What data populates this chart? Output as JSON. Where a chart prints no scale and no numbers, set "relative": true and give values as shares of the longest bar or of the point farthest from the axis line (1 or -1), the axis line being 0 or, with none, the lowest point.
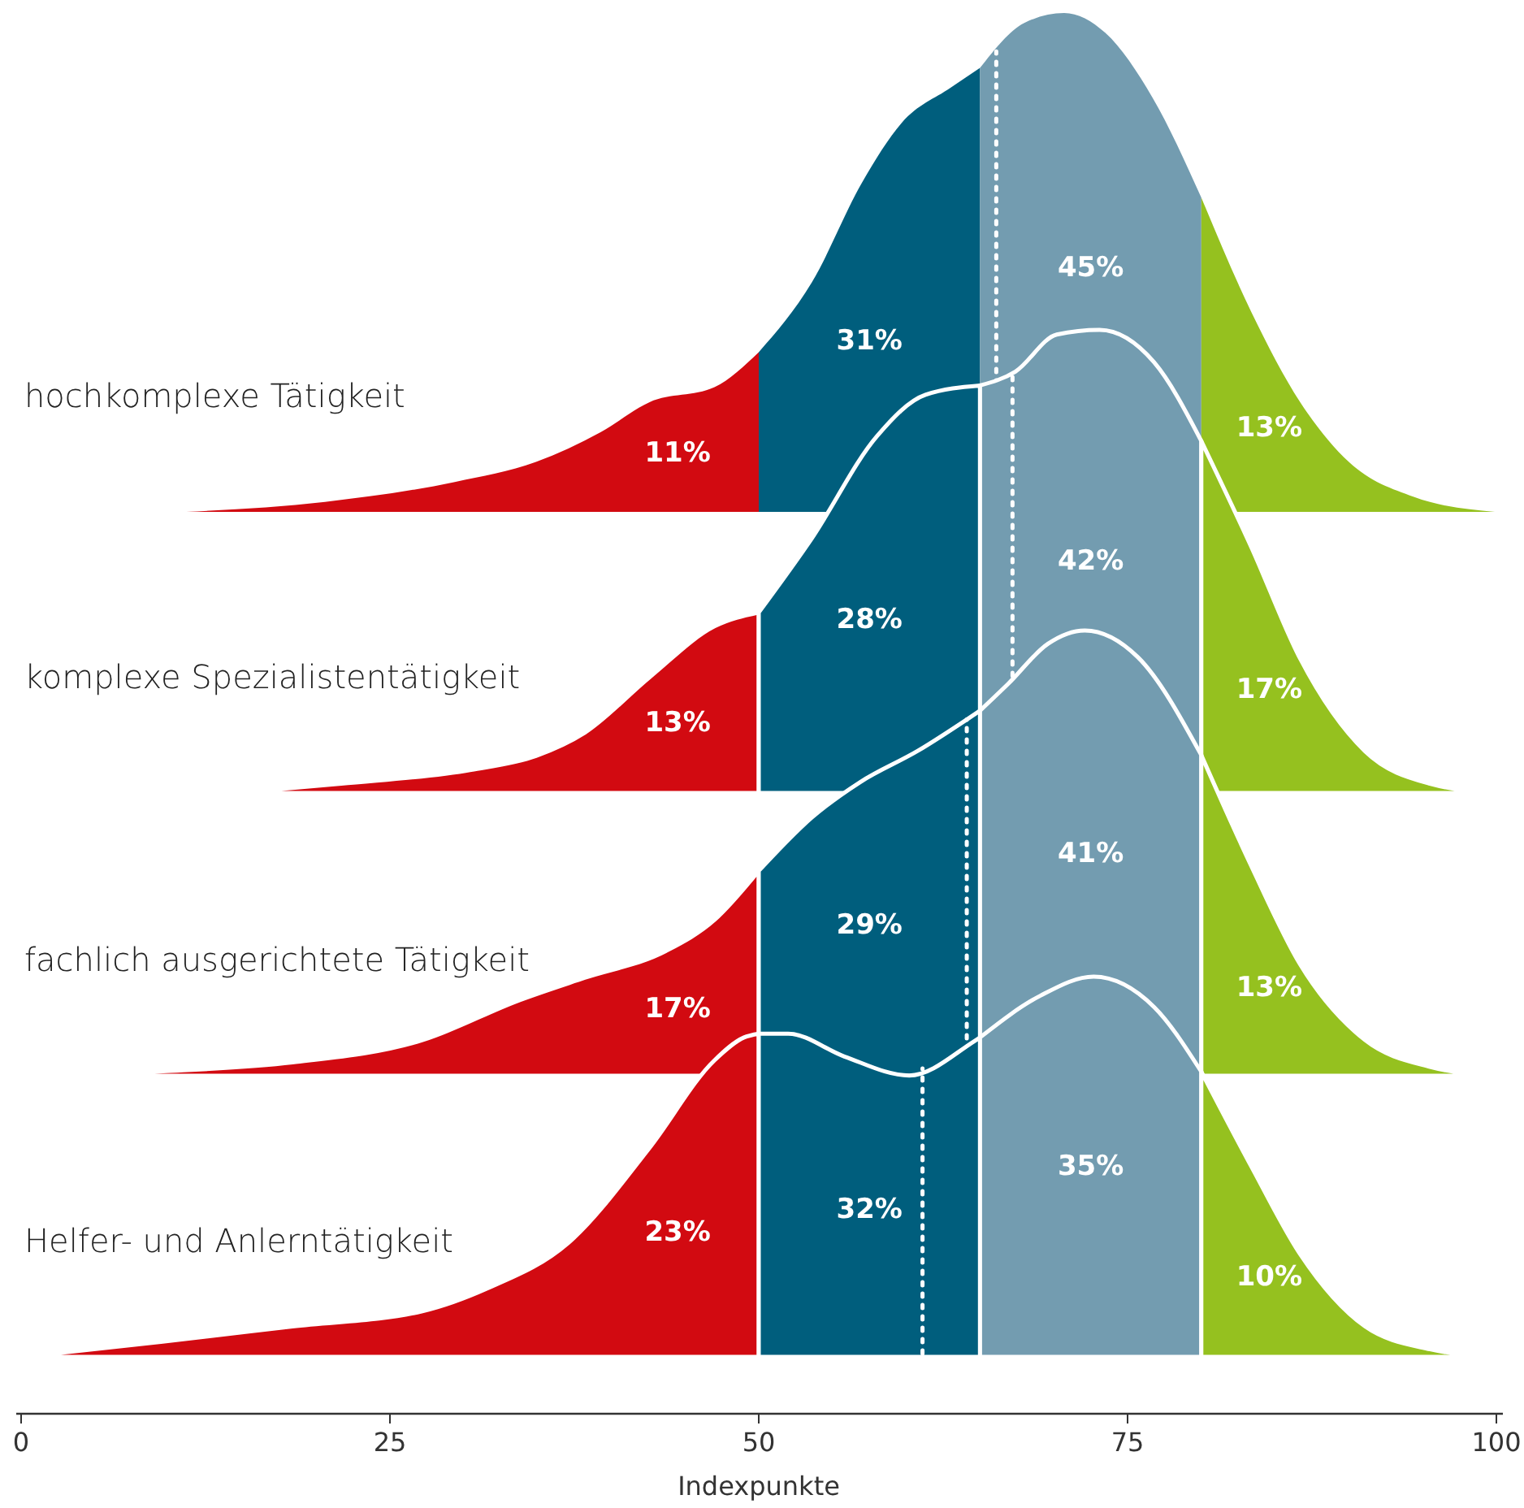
{
  "chart_data": [
    {
      "type": "area",
      "relative": true,
      "ylabel": "hochkomplexe Tätigkeit",
      "xlim": [
        0,
        100
      ],
      "tick_labels": false,
      "series": [
        {
          "color": "#d20a11",
          "x": [
            11.2,
            20.6,
            29.4,
            34.9,
            39.3,
            42.6,
            47.0,
            50
          ],
          "values": [
            0,
            0.02,
            0.06,
            0.1,
            0.16,
            0.22,
            0.25,
            0.32
          ]
        },
        {
          "color": "#005e7d",
          "x": [
            50,
            53.6,
            57.0,
            59.7,
            63.0,
            65
          ],
          "values": [
            0.32,
            0.46,
            0.66,
            0.78,
            0.85,
            0.89
          ]
        },
        {
          "color": "#739cb0",
          "x": [
            65,
            68.0,
            70.7,
            73.5,
            76.7,
            80
          ],
          "values": [
            0.89,
            0.98,
            1.0,
            0.96,
            0.83,
            0.63
          ]
        },
        {
          "color": "#95c11f",
          "x": [
            80,
            83.4,
            86.7,
            90.0,
            94.4,
            99.9
          ],
          "values": [
            0.63,
            0.4,
            0.22,
            0.1,
            0.03,
            0
          ]
        }
      ],
      "annotations": [
        "11%",
        "31%",
        "45%",
        "13%"
      ],
      "ref_lines": [
        {
          "axis": "x",
          "value": 66.1,
          "color": "#ffffff",
          "line_style": "dotted"
        }
      ]
    },
    {
      "type": "area",
      "relative": true,
      "ylabel": "komplexe Spezialistentätigkeit",
      "xlim": [
        0,
        100
      ],
      "tick_labels": false,
      "series": [
        {
          "color": "#d20a11",
          "x": [
            14.5,
            21.7,
            30.5,
            34.9,
            38.2,
            42.6,
            47.0,
            50
          ],
          "values": [
            0,
            0.02,
            0.05,
            0.08,
            0.13,
            0.25,
            0.36,
            0.39
          ]
        },
        {
          "color": "#005e7d",
          "x": [
            50,
            53.6,
            58.0,
            61.3,
            65
          ],
          "values": [
            0.39,
            0.55,
            0.77,
            0.86,
            0.88
          ]
        },
        {
          "color": "#739cb0",
          "x": [
            65,
            67.4,
            70.2,
            73.1,
            76.8,
            80
          ],
          "values": [
            0.88,
            0.91,
            0.99,
            1.0,
            0.93,
            0.76
          ]
        },
        {
          "color": "#95c11f",
          "x": [
            80,
            83.4,
            86.7,
            91.1,
            95.5,
            100
          ],
          "values": [
            0.76,
            0.53,
            0.29,
            0.09,
            0.02,
            0
          ]
        }
      ],
      "annotations": [
        "13%",
        "28%",
        "42%",
        "17%"
      ],
      "ref_lines": [
        {
          "axis": "x",
          "value": 67.2,
          "color": "#ffffff",
          "line_style": "dotted"
        }
      ]
    },
    {
      "type": "area",
      "relative": true,
      "ylabel": "fachlich ausgerichtete Tätigkeit",
      "xlim": [
        0,
        100
      ],
      "tick_labels": false,
      "series": [
        {
          "color": "#d20a11",
          "x": [
            0,
            9.6,
            18.4,
            27.2,
            33.8,
            38.2,
            43.7,
            47.0,
            50
          ],
          "values": [
            0,
            0.01,
            0.03,
            0.08,
            0.17,
            0.22,
            0.28,
            0.35,
            0.46
          ]
        },
        {
          "color": "#005e7d",
          "x": [
            50,
            53.6,
            56.9,
            60.8,
            64.1,
            65
          ],
          "values": [
            0.46,
            0.58,
            0.66,
            0.73,
            0.8,
            0.82
          ]
        },
        {
          "color": "#739cb0",
          "x": [
            65,
            66.9,
            69.6,
            72.1,
            75.7,
            80
          ],
          "values": [
            0.82,
            0.88,
            0.97,
            1.0,
            0.94,
            0.72
          ]
        },
        {
          "color": "#95c11f",
          "x": [
            80,
            83.4,
            86.7,
            91.1,
            95.5,
            100
          ],
          "values": [
            0.72,
            0.47,
            0.25,
            0.08,
            0.02,
            0
          ]
        }
      ],
      "annotations": [
        "17%",
        "29%",
        "41%",
        "13%"
      ],
      "ref_lines": [
        {
          "axis": "x",
          "value": 64.1,
          "color": "#ffffff",
          "line_style": "dotted"
        }
      ]
    },
    {
      "type": "area",
      "relative": true,
      "ylabel": "Helfer- und Anlerntätigkeit",
      "xlabel": "Indexpunkte",
      "xlim": [
        0,
        100
      ],
      "xticks": [
        0,
        25,
        50,
        75,
        100
      ],
      "tick_labels": "x",
      "series": [
        {
          "color": "#d20a11",
          "x": [
            0.2,
            9.6,
            18.4,
            27.2,
            31.6,
            37.1,
            42.6,
            47.0,
            49.0,
            50
          ],
          "values": [
            0,
            0.04,
            0.08,
            0.12,
            0.18,
            0.3,
            0.55,
            0.78,
            0.84,
            0.85
          ]
        },
        {
          "color": "#005e7d",
          "x": [
            50,
            52.0,
            55.8,
            60.2,
            64.6,
            65
          ],
          "values": [
            0.85,
            0.85,
            0.79,
            0.74,
            0.83,
            0.84
          ]
        },
        {
          "color": "#739cb0",
          "x": [
            65,
            69.1,
            72.7,
            76.8,
            80
          ],
          "values": [
            0.84,
            0.95,
            1.0,
            0.92,
            0.75
          ]
        },
        {
          "color": "#95c11f",
          "x": [
            80,
            83.4,
            86.7,
            91.1,
            95.5,
            100
          ],
          "values": [
            0.75,
            0.5,
            0.27,
            0.08,
            0.02,
            0
          ]
        }
      ],
      "annotations": [
        "23%",
        "32%",
        "35%",
        "10%"
      ],
      "ref_lines": [
        {
          "axis": "x",
          "value": 61.1,
          "color": "#ffffff",
          "line_style": "dotted"
        }
      ]
    }
  ]
}
